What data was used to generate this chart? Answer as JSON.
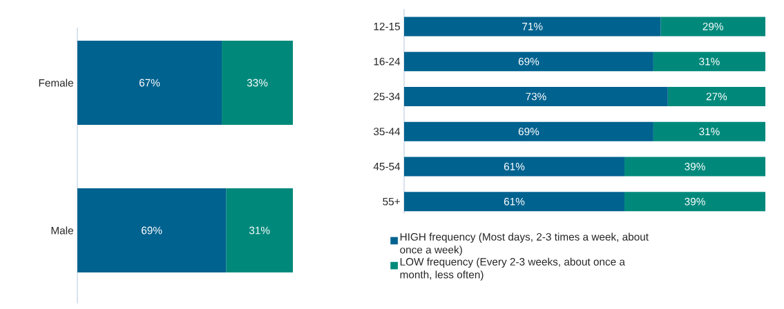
{
  "chart_data": [
    {
      "type": "bar",
      "orientation": "horizontal",
      "stacked": true,
      "categories": [
        "Female",
        "Male"
      ],
      "series": [
        {
          "color": "#00628f",
          "values": [
            67,
            69
          ],
          "value_labels": [
            "67%",
            "69%"
          ]
        },
        {
          "color": "#00897b",
          "values": [
            33,
            31
          ],
          "value_labels": [
            "33%",
            "31%"
          ]
        }
      ]
    },
    {
      "type": "bar",
      "orientation": "horizontal",
      "stacked": true,
      "categories": [
        "12-15",
        "16-24",
        "25-34",
        "35-44",
        "45-54",
        "55+"
      ],
      "legend": "bottom",
      "series": [
        {
          "name": "HIGH frequency (Most days, 2-3 times a week, about once a week)",
          "color": "#00628f",
          "values": [
            71,
            69,
            73,
            69,
            61,
            61
          ],
          "value_labels": [
            "71%",
            "69%",
            "73%",
            "69%",
            "61%",
            "61%"
          ]
        },
        {
          "name": "LOW frequency (Every 2-3 weeks, about once a month, less often)",
          "color": "#00897b",
          "values": [
            29,
            31,
            27,
            31,
            39,
            39
          ],
          "value_labels": [
            "29%",
            "31%",
            "27%",
            "31%",
            "39%",
            "39%"
          ]
        }
      ]
    }
  ]
}
